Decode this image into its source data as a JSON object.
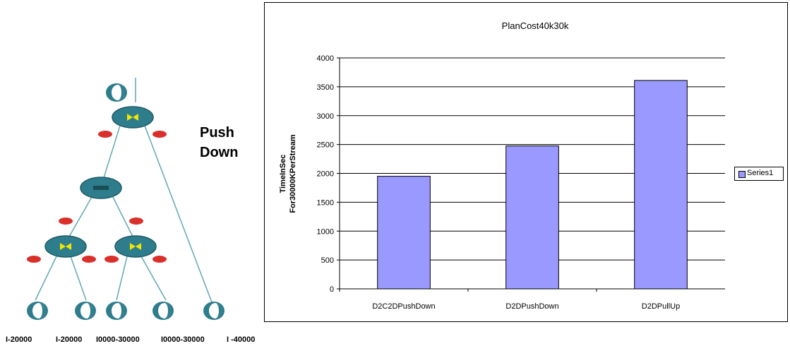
{
  "diagram": {
    "push_label_line1": "Push",
    "push_label_line2": "Down",
    "stream_labels": [
      "I-20000",
      "I-20000",
      "I0000-30000",
      "I0000-30000",
      "I -40000"
    ],
    "node_color": "#2e7d8c",
    "selection_color": "#d9302c",
    "join_symbol_color": "#f2e600"
  },
  "chart_data": {
    "type": "bar",
    "title": "PlanCost40k30k",
    "ylabel_lines": [
      "TimeInSec",
      "For30000KPerStream"
    ],
    "xlabel": "",
    "categories": [
      "D2C2DPushDown",
      "D2DPushDown",
      "D2DPullUp"
    ],
    "series": [
      {
        "name": "Series1",
        "values": [
          1950,
          2475,
          3610
        ],
        "color": "#9999ff"
      }
    ],
    "yticks": [
      "0",
      "500",
      "1000",
      "1500",
      "2000",
      "2500",
      "3000",
      "3500",
      "4000"
    ],
    "ylim": [
      0,
      4000
    ],
    "grid": true,
    "legend_position": "right"
  }
}
